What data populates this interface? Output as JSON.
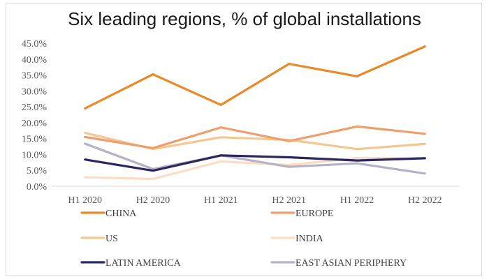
{
  "chart_data": {
    "type": "line",
    "title": "Six leading regions, % of global installations",
    "categories": [
      "H1 2020",
      "H2 2020",
      "H1 2021",
      "H2 2021",
      "H1 2022",
      "H2 2022"
    ],
    "y_ticks": [
      "0.0%",
      "5.0%",
      "10.0%",
      "15.0%",
      "20.0%",
      "25.0%",
      "30.0%",
      "35.0%",
      "40.0%",
      "45.0%"
    ],
    "ylim": [
      0,
      45
    ],
    "xlabel": "",
    "ylabel": "",
    "grid": false,
    "legend_position": "bottom",
    "series": [
      {
        "name": "CHINA",
        "color": "#e8892a",
        "values": [
          24.5,
          35.2,
          25.6,
          38.5,
          34.6,
          44.0
        ]
      },
      {
        "name": "EUROPE",
        "color": "#ee9f6e",
        "values": [
          15.5,
          12.0,
          18.5,
          14.2,
          18.8,
          16.5
        ]
      },
      {
        "name": "US",
        "color": "#f6c690",
        "values": [
          16.8,
          11.7,
          15.4,
          14.6,
          11.7,
          13.3
        ]
      },
      {
        "name": "INDIA",
        "color": "#fbdcc4",
        "values": [
          2.8,
          2.3,
          7.8,
          6.7,
          8.9,
          8.8
        ]
      },
      {
        "name": "LATIN AMERICA",
        "color": "#2b2760",
        "values": [
          8.4,
          4.9,
          9.7,
          9.1,
          8.1,
          8.8
        ]
      },
      {
        "name": "EAST ASIAN PERIPHERY",
        "color": "#b5b2c5",
        "values": [
          13.4,
          5.4,
          9.7,
          6.1,
          7.2,
          4.0
        ]
      }
    ]
  }
}
